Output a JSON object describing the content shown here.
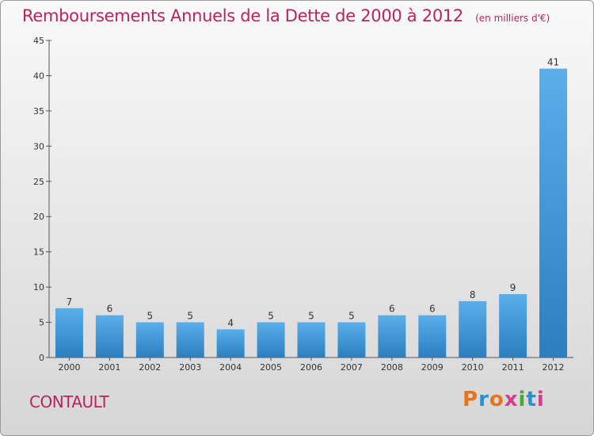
{
  "header": {
    "title": "Remboursements Annuels de la Dette de 2000 à 2012",
    "unit": "(en milliers d'€)"
  },
  "footer": {
    "commune": "CONTAULT",
    "brand": "Proxiti",
    "brand_colors": [
      "#e8731a",
      "#2a8fd0",
      "#e8731a",
      "#d43c8c",
      "#4aa832",
      "#2a8fd0",
      "#d43c8c"
    ]
  },
  "chart_data": {
    "type": "bar",
    "title": "Remboursements Annuels de la Dette de 2000 à 2012",
    "xlabel": "",
    "ylabel": "",
    "categories": [
      "2000",
      "2001",
      "2002",
      "2003",
      "2004",
      "2005",
      "2006",
      "2007",
      "2008",
      "2009",
      "2010",
      "2011",
      "2012"
    ],
    "values": [
      7,
      6,
      5,
      5,
      4,
      5,
      5,
      5,
      6,
      6,
      8,
      9,
      41
    ],
    "ylim": [
      0,
      45
    ],
    "yticks": [
      0,
      5,
      10,
      15,
      20,
      25,
      30,
      35,
      40,
      45
    ],
    "grid": false,
    "bar_color_top": "#5aaeea",
    "bar_color_bottom": "#2b7fc0"
  }
}
